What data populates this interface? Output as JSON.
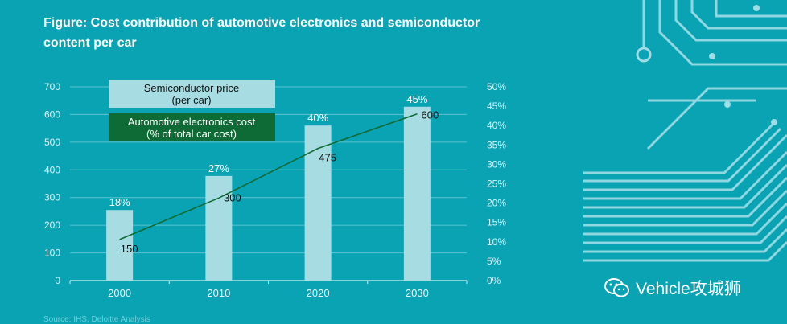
{
  "title": "Figure: Cost contribution of automotive electronics and semiconductor content per car",
  "source": "Source: IHS, Deloitte Analysis",
  "watermark": "Vehicle攻城狮",
  "colors": {
    "background": "#0aa3b4",
    "bar": "#a8dce3",
    "line": "#0f6b35",
    "legend_green": "#0f6b35"
  },
  "chart_data": {
    "type": "bar",
    "categories": [
      "2000",
      "2010",
      "2020",
      "2030"
    ],
    "series": [
      {
        "name": "Semiconductor price\n(per car)",
        "axis": "left",
        "kind": "bar",
        "values": [
          255,
          378,
          560,
          628
        ],
        "data_labels": [
          "18%",
          "27%",
          "40%",
          "45%"
        ]
      },
      {
        "name": "Automotive electronics cost\n(% of total car cost)",
        "axis": "right",
        "kind": "line",
        "values": [
          10.6,
          21.3,
          34.1,
          43.0
        ],
        "data_labels": [
          "150",
          "300",
          "475",
          "600"
        ]
      }
    ],
    "legend": [
      {
        "line1": "Semiconductor price",
        "line2": "(per car)"
      },
      {
        "line1": "Automotive electronics cost",
        "line2": "(% of total car cost)"
      }
    ],
    "y_left": {
      "min": 0,
      "max": 700,
      "ticks": [
        "0",
        "100",
        "200",
        "300",
        "400",
        "500",
        "600",
        "700"
      ]
    },
    "y_right": {
      "min": 0,
      "max": 50,
      "ticks": [
        "0%",
        "5%",
        "10%",
        "15%",
        "20%",
        "25%",
        "30%",
        "35%",
        "40%",
        "45%",
        "50%"
      ]
    },
    "grid": true,
    "legend_placement": "top-left"
  }
}
